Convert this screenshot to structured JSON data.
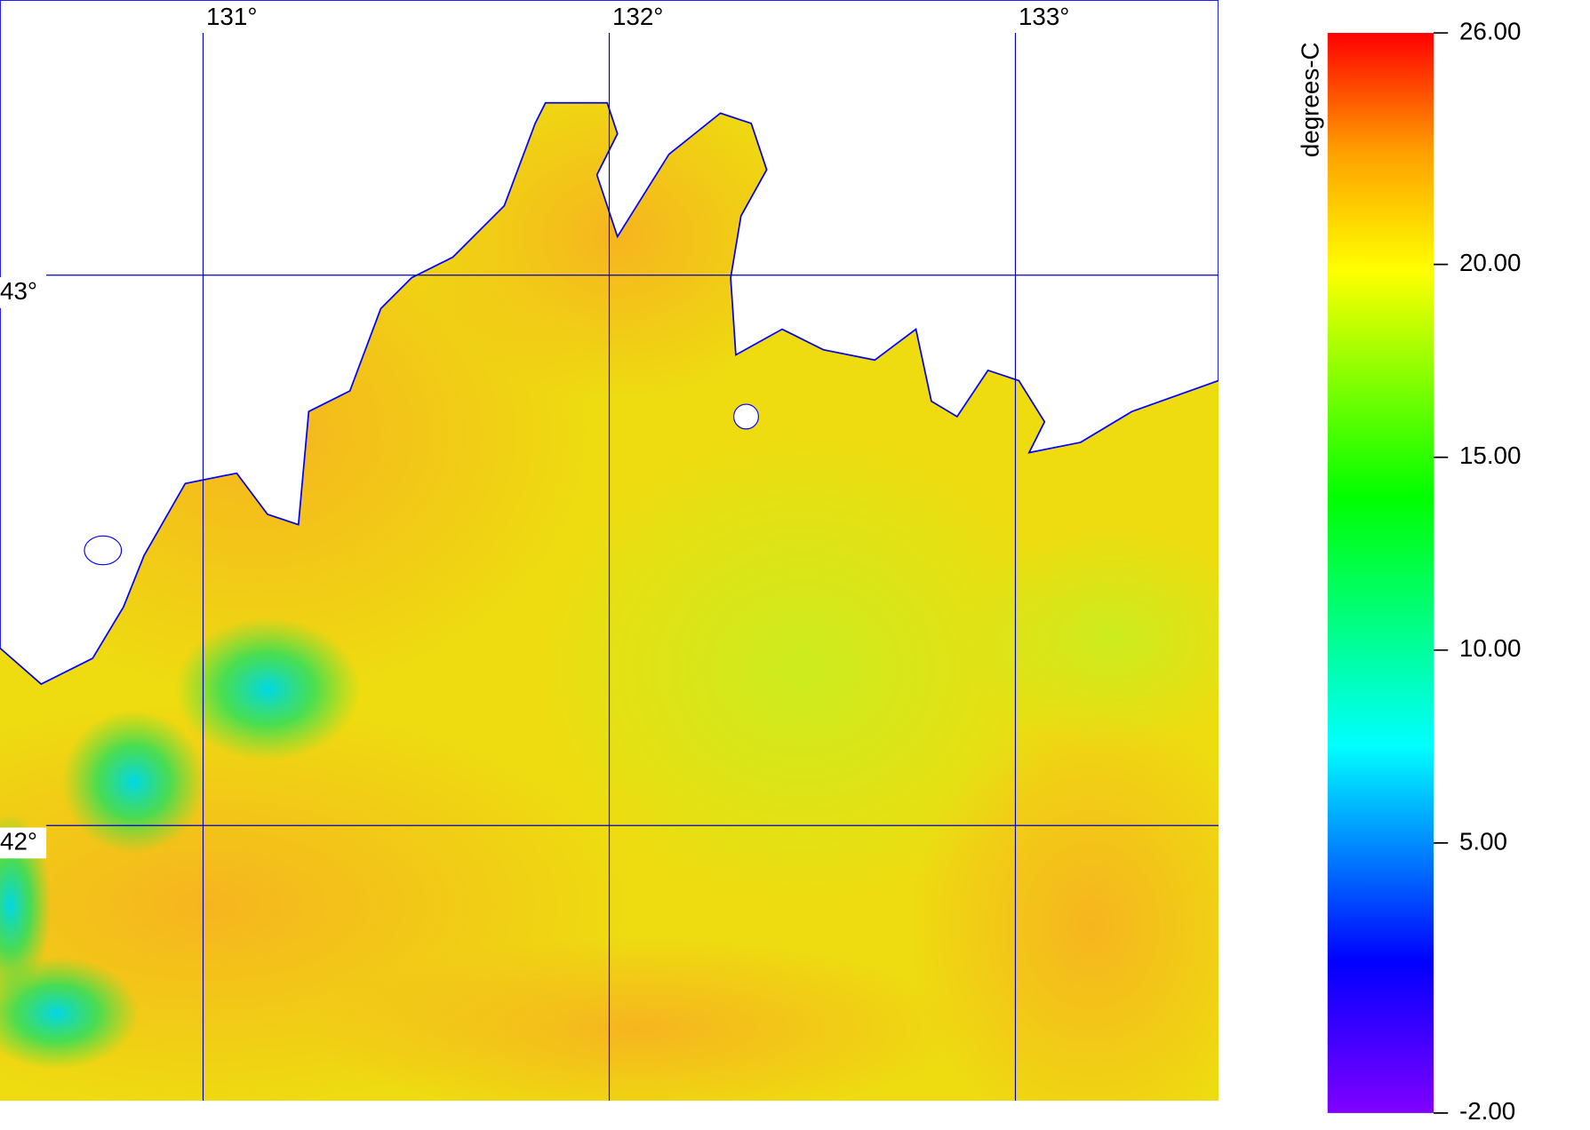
{
  "map": {
    "lonlim": [
      130.5,
      133.5
    ],
    "latlim": [
      41.5,
      43.5
    ],
    "lon_ticks": [
      {
        "value": 131,
        "label": "131°"
      },
      {
        "value": 132,
        "label": "132°"
      },
      {
        "value": 133,
        "label": "133°"
      }
    ],
    "lat_ticks": [
      {
        "value": 43,
        "label": "43°"
      },
      {
        "value": 42,
        "label": "42°"
      }
    ],
    "grid_color": "#0000c0",
    "coast_color": "#0000ff",
    "colorbar": {
      "label": "degrees-C",
      "lim": [
        -2,
        26
      ],
      "ticks": [
        {
          "value": 26,
          "label": "26.00"
        },
        {
          "value": 20,
          "label": "20.00"
        },
        {
          "value": 15,
          "label": "15.00"
        },
        {
          "value": 10,
          "label": "10.00"
        },
        {
          "value": 5,
          "label": "5.00"
        },
        {
          "value": -2,
          "label": "-2.00"
        }
      ]
    }
  }
}
